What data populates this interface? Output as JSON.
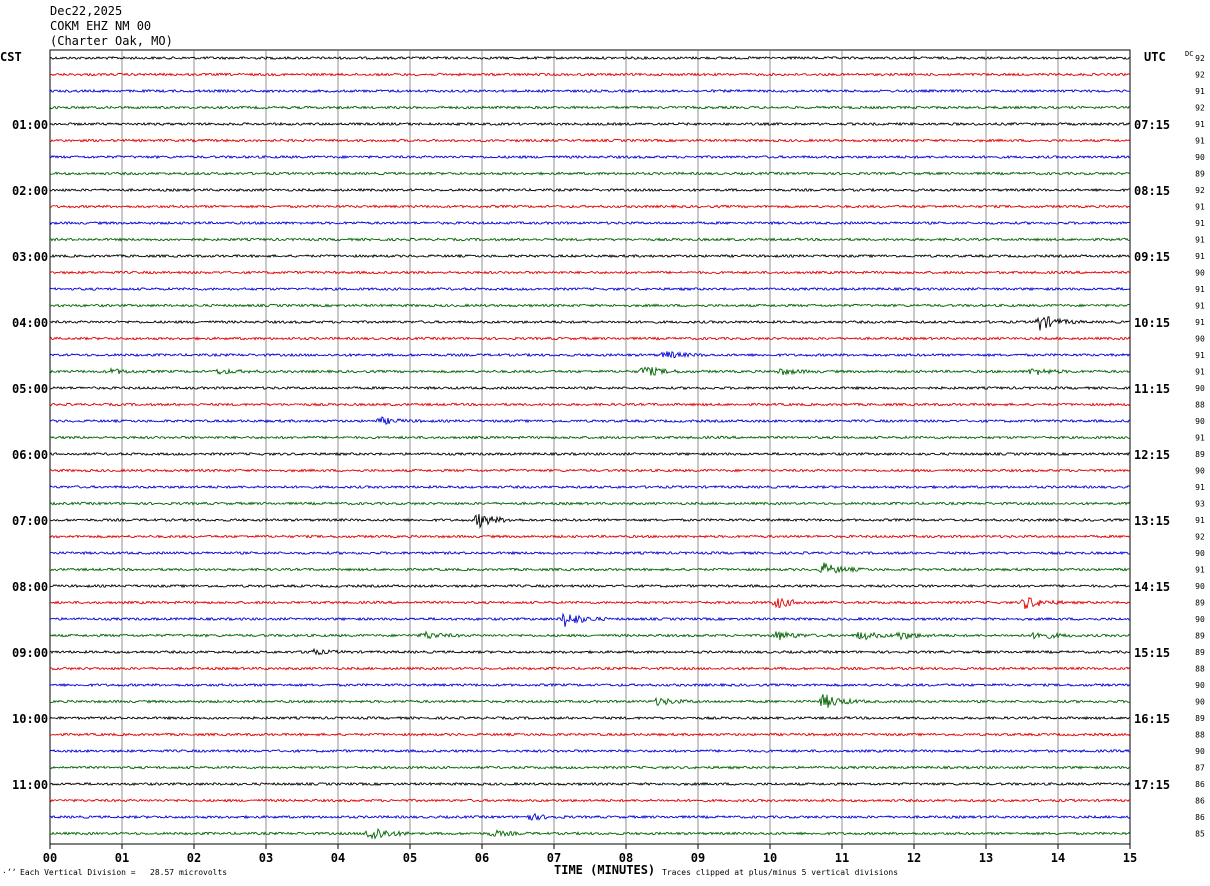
{
  "header": {
    "date": "Dec22,2025",
    "station": "COKM EHZ NM 00",
    "location": "(Charter Oak, MO)"
  },
  "tz_left": "CST",
  "tz_right": "UTC",
  "dc_label": "DC",
  "footer": {
    "mark": "·ʼʼ",
    "scale_text": "Each Vertical Division =   28.57 microvolts",
    "clip_text": "Traces clipped at plus/minus 5 vertical divisions"
  },
  "colors": [
    "#000000",
    "#e00000",
    "#0000d8",
    "#006400"
  ],
  "chart_data": {
    "type": "line",
    "title": "",
    "xlabel": "TIME (MINUTES)",
    "ylabel": "",
    "xlim": [
      0,
      15
    ],
    "x_ticks": [
      "00",
      "01",
      "02",
      "03",
      "04",
      "05",
      "06",
      "07",
      "08",
      "09",
      "10",
      "11",
      "12",
      "13",
      "14",
      "15"
    ],
    "grid": true,
    "trace_minutes": 15,
    "left_time_labels": [
      "01:00",
      "02:00",
      "03:00",
      "04:00",
      "05:00",
      "06:00",
      "07:00",
      "08:00",
      "09:00",
      "10:00",
      "11:00"
    ],
    "right_time_labels": [
      "07:15",
      "08:15",
      "09:15",
      "10:15",
      "11:15",
      "12:15",
      "13:15",
      "14:15",
      "15:15",
      "16:15",
      "17:15"
    ],
    "dc_values": [
      "92",
      "92",
      "91",
      "92",
      "91",
      "91",
      "90",
      "89",
      "92",
      "91",
      "91",
      "91",
      "91",
      "90",
      "91",
      "91",
      "91",
      "90",
      "91",
      "91",
      "90",
      "88",
      "90",
      "91",
      "89",
      "90",
      "91",
      "93",
      "91",
      "92",
      "90",
      "91",
      "90",
      "89",
      "90",
      "89",
      "89",
      "88",
      "90",
      "90",
      "89",
      "88",
      "90",
      "87",
      "86",
      "86",
      "86",
      "85"
    ],
    "events": [
      {
        "trace": 16,
        "minute": 13.75,
        "amplitude": 3.5
      },
      {
        "trace": 18,
        "minute": 8.55,
        "amplitude": 1.6
      },
      {
        "trace": 19,
        "minute": 8.25,
        "amplitude": 2.5
      },
      {
        "trace": 19,
        "minute": 10.15,
        "amplitude": 1.3
      },
      {
        "trace": 19,
        "minute": 13.65,
        "amplitude": 1.5
      },
      {
        "trace": 19,
        "minute": 0.85,
        "amplitude": 1.0
      },
      {
        "trace": 19,
        "minute": 2.35,
        "amplitude": 1.0
      },
      {
        "trace": 22,
        "minute": 4.6,
        "amplitude": 1.4
      },
      {
        "trace": 28,
        "minute": 5.95,
        "amplitude": 3.2
      },
      {
        "trace": 31,
        "minute": 10.75,
        "amplitude": 2.7
      },
      {
        "trace": 33,
        "minute": 10.1,
        "amplitude": 2.3
      },
      {
        "trace": 33,
        "minute": 13.55,
        "amplitude": 2.8
      },
      {
        "trace": 34,
        "minute": 7.15,
        "amplitude": 3.5
      },
      {
        "trace": 35,
        "minute": 5.2,
        "amplitude": 1.6
      },
      {
        "trace": 35,
        "minute": 10.1,
        "amplitude": 2.0
      },
      {
        "trace": 35,
        "minute": 11.25,
        "amplitude": 1.9
      },
      {
        "trace": 35,
        "minute": 11.8,
        "amplitude": 1.6
      },
      {
        "trace": 35,
        "minute": 13.7,
        "amplitude": 1.9
      },
      {
        "trace": 36,
        "minute": 3.6,
        "amplitude": 1.3
      },
      {
        "trace": 39,
        "minute": 8.45,
        "amplitude": 1.6
      },
      {
        "trace": 39,
        "minute": 10.75,
        "amplitude": 3.3
      },
      {
        "trace": 46,
        "minute": 6.65,
        "amplitude": 1.4
      },
      {
        "trace": 47,
        "minute": 4.45,
        "amplitude": 3.8
      },
      {
        "trace": 47,
        "minute": 6.15,
        "amplitude": 1.2
      }
    ]
  }
}
